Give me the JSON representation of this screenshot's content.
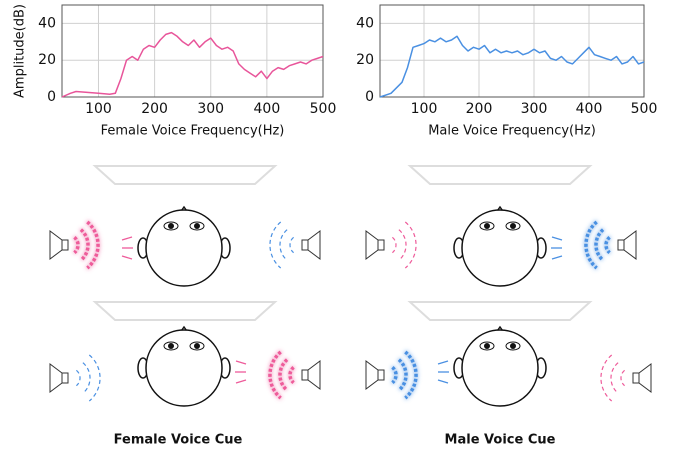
{
  "chart_data": [
    {
      "type": "line",
      "ylabel": "Amplitude(dB)",
      "xlabel": "Female Voice Frequency(Hz)",
      "color": "#e8559a",
      "x": [
        35,
        50,
        60,
        80,
        100,
        120,
        130,
        140,
        150,
        160,
        170,
        180,
        190,
        200,
        210,
        220,
        230,
        240,
        250,
        260,
        270,
        280,
        290,
        300,
        310,
        320,
        330,
        340,
        350,
        360,
        370,
        380,
        390,
        400,
        410,
        420,
        430,
        440,
        450,
        460,
        470,
        480,
        490,
        500
      ],
      "values": [
        0,
        2,
        3,
        2.5,
        2,
        1.5,
        2,
        10,
        20,
        22,
        20,
        26,
        28,
        27,
        31,
        34,
        35,
        33,
        30,
        28,
        31,
        27,
        30,
        32,
        28,
        26,
        27,
        25,
        18,
        15,
        13,
        11,
        14,
        10,
        14,
        16,
        15,
        17,
        18,
        19,
        18,
        20,
        21,
        22
      ],
      "xlim": [
        35,
        500
      ],
      "ylim": [
        0,
        50
      ],
      "xticks": [
        100,
        200,
        300,
        400,
        500
      ],
      "yticks": [
        0,
        20,
        40
      ],
      "grid": true
    },
    {
      "type": "line",
      "xlabel": "Male Voice Frequency(Hz)",
      "color": "#4a90e2",
      "x": [
        20,
        40,
        60,
        70,
        80,
        90,
        100,
        110,
        120,
        130,
        140,
        150,
        160,
        170,
        180,
        190,
        200,
        210,
        220,
        230,
        240,
        250,
        260,
        270,
        280,
        290,
        300,
        310,
        320,
        330,
        340,
        350,
        360,
        370,
        380,
        390,
        400,
        410,
        420,
        430,
        440,
        450,
        460,
        470,
        480,
        490,
        500
      ],
      "values": [
        0,
        2,
        8,
        16,
        27,
        28,
        29,
        31,
        30,
        32,
        30,
        31,
        33,
        28,
        25,
        27,
        26,
        28,
        24,
        26,
        24,
        25,
        24,
        25,
        23,
        24,
        26,
        24,
        25,
        21,
        20,
        22,
        19,
        18,
        21,
        24,
        27,
        23,
        22,
        21,
        20,
        22,
        18,
        19,
        22,
        18,
        19
      ],
      "xlim": [
        20,
        500
      ],
      "ylim": [
        0,
        50
      ],
      "xticks": [
        100,
        200,
        300,
        400,
        500
      ],
      "yticks": [
        0,
        20,
        40
      ],
      "grid": true
    }
  ],
  "captions": [
    "Female Voice Cue",
    "Male Voice Cue"
  ]
}
